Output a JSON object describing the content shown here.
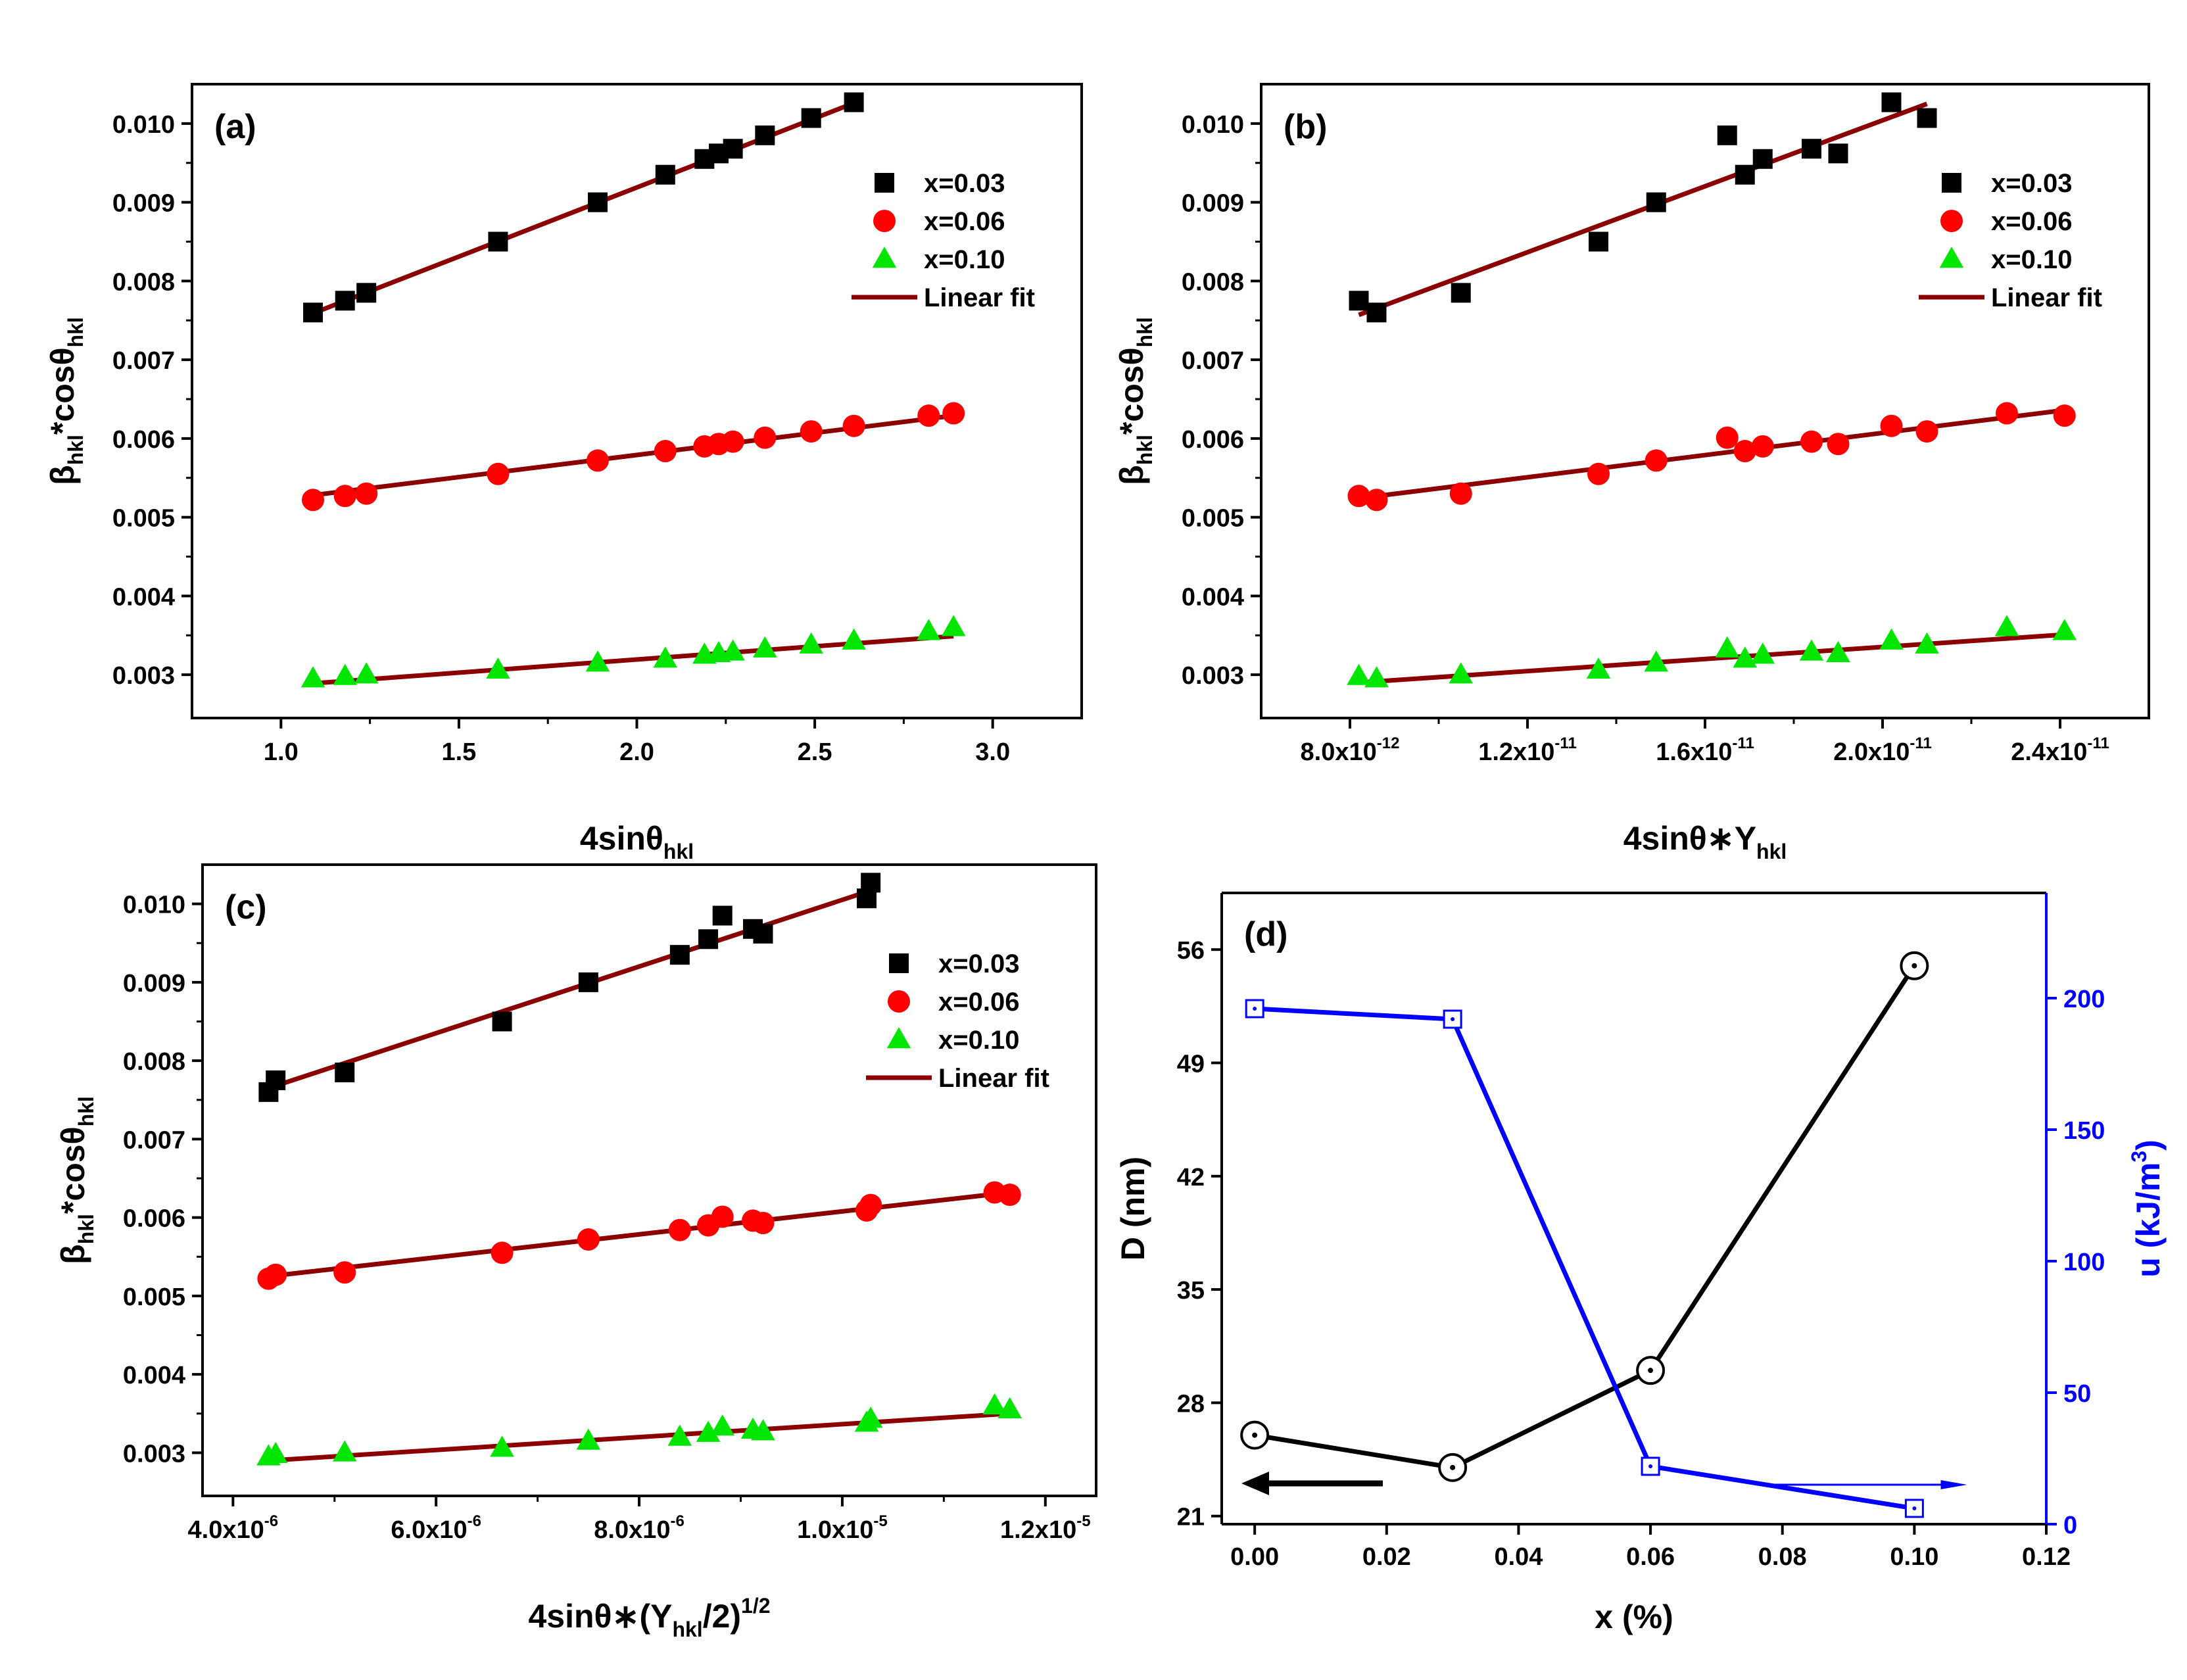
{
  "chart_data": [
    {
      "type": "scatter",
      "panel_label": "(a)",
      "ylabel": "βhkl*cosθhkl",
      "xlabel": "4sinθhkl",
      "xlim": [
        0.75,
        3.25
      ],
      "ylim": [
        0.00245,
        0.0105
      ],
      "xticks": [
        1.0,
        1.5,
        2.0,
        2.5,
        3.0
      ],
      "xtick_labels": [
        "1.0",
        "1.5",
        "2.0",
        "2.5",
        "3.0"
      ],
      "yticks": [
        0.003,
        0.004,
        0.005,
        0.006,
        0.007,
        0.008,
        0.009,
        0.01
      ],
      "ytick_labels": [
        "0.003",
        "0.004",
        "0.005",
        "0.006",
        "0.007",
        "0.008",
        "0.009",
        "0.010"
      ],
      "legend": {
        "placement": "upper-right",
        "entries": [
          "x=0.03",
          "x=0.06",
          "x=0.10",
          "Linear fit"
        ]
      },
      "series": [
        {
          "name": "x=0.03",
          "marker": "square",
          "color": "#000000",
          "x": [
            1.09,
            1.18,
            1.24,
            1.61,
            1.89,
            2.08,
            2.19,
            2.23,
            2.27,
            2.36,
            2.49,
            2.61
          ],
          "y": [
            0.0076,
            0.00775,
            0.00785,
            0.0085,
            0.009,
            0.00935,
            0.00955,
            0.00962,
            0.00968,
            0.00985,
            0.01007,
            0.01027
          ]
        },
        {
          "name": "x=0.06",
          "marker": "circle",
          "color": "#ff0000",
          "x": [
            1.09,
            1.18,
            1.24,
            1.61,
            1.89,
            2.08,
            2.19,
            2.23,
            2.27,
            2.36,
            2.49,
            2.61,
            2.82,
            2.89
          ],
          "y": [
            0.00522,
            0.00527,
            0.0053,
            0.00555,
            0.00572,
            0.00584,
            0.0059,
            0.00593,
            0.00596,
            0.00601,
            0.00609,
            0.00616,
            0.00629,
            0.00632
          ]
        },
        {
          "name": "x=0.10",
          "marker": "triangle",
          "color": "#00e600",
          "x": [
            1.09,
            1.18,
            1.24,
            1.61,
            1.89,
            2.08,
            2.19,
            2.23,
            2.27,
            2.36,
            2.49,
            2.61,
            2.82,
            2.89
          ],
          "y": [
            0.00295,
            0.00298,
            0.003,
            0.00306,
            0.00315,
            0.0032,
            0.00325,
            0.00327,
            0.00329,
            0.00333,
            0.00338,
            0.00343,
            0.00355,
            0.0036
          ]
        },
        {
          "name": "Linear fit",
          "type": "line",
          "color": "#8b0000",
          "segments": [
            {
              "x": [
                1.09,
                2.61
              ],
              "y": [
                0.00759,
                0.01026
              ]
            },
            {
              "x": [
                1.09,
                2.89
              ],
              "y": [
                0.00528,
                0.00629
              ]
            },
            {
              "x": [
                1.09,
                2.89
              ],
              "y": [
                0.00289,
                0.00349
              ]
            }
          ]
        }
      ]
    },
    {
      "type": "scatter",
      "panel_label": "(b)",
      "ylabel": "βhkl*cosθhkl",
      "xlabel": "4sinθ*Yhkl",
      "xlim": [
        6e-12,
        2.6e-11
      ],
      "ylim": [
        0.00245,
        0.0105
      ],
      "xticks": [
        8e-12,
        1.2e-11,
        1.6e-11,
        2e-11,
        2.4e-11
      ],
      "xtick_labels": [
        {
          "mantissa": "8.0x10",
          "exp": "-12"
        },
        {
          "mantissa": "1.2x10",
          "exp": "-11"
        },
        {
          "mantissa": "1.6x10",
          "exp": "-11"
        },
        {
          "mantissa": "2.0x10",
          "exp": "-11"
        },
        {
          "mantissa": "2.4x10",
          "exp": "-11"
        }
      ],
      "yticks": [
        0.003,
        0.004,
        0.005,
        0.006,
        0.007,
        0.008,
        0.009,
        0.01
      ],
      "ytick_labels": [
        "0.003",
        "0.004",
        "0.005",
        "0.006",
        "0.007",
        "0.008",
        "0.009",
        "0.010"
      ],
      "legend": {
        "placement": "upper-right",
        "entries": [
          "x=0.03",
          "x=0.06",
          "x=0.10",
          "Linear fit"
        ]
      },
      "series": [
        {
          "name": "x=0.03",
          "marker": "square",
          "color": "#000000",
          "x": [
            8.2e-12,
            8.6e-12,
            1.05e-11,
            1.36e-11,
            1.49e-11,
            1.65e-11,
            1.69e-11,
            1.73e-11,
            1.84e-11,
            1.9e-11,
            2.02e-11,
            2.1e-11
          ],
          "y": [
            0.00775,
            0.0076,
            0.00785,
            0.0085,
            0.009,
            0.00985,
            0.00935,
            0.00955,
            0.00968,
            0.00962,
            0.01027,
            0.01007
          ]
        },
        {
          "name": "x=0.06",
          "marker": "circle",
          "color": "#ff0000",
          "x": [
            8.2e-12,
            8.6e-12,
            1.05e-11,
            1.36e-11,
            1.49e-11,
            1.65e-11,
            1.69e-11,
            1.73e-11,
            1.84e-11,
            1.9e-11,
            2.02e-11,
            2.1e-11,
            2.28e-11,
            2.41e-11
          ],
          "y": [
            0.00527,
            0.00522,
            0.0053,
            0.00555,
            0.00572,
            0.00601,
            0.00584,
            0.0059,
            0.00596,
            0.00593,
            0.00616,
            0.00609,
            0.00632,
            0.00629
          ]
        },
        {
          "name": "x=0.10",
          "marker": "triangle",
          "color": "#00e600",
          "x": [
            8.2e-12,
            8.6e-12,
            1.05e-11,
            1.36e-11,
            1.49e-11,
            1.65e-11,
            1.69e-11,
            1.73e-11,
            1.84e-11,
            1.9e-11,
            2.02e-11,
            2.1e-11,
            2.28e-11,
            2.41e-11
          ],
          "y": [
            0.00298,
            0.00295,
            0.003,
            0.00306,
            0.00315,
            0.00333,
            0.0032,
            0.00325,
            0.00329,
            0.00327,
            0.00343,
            0.00338,
            0.0036,
            0.00355
          ]
        },
        {
          "name": "Linear fit",
          "type": "line",
          "color": "#8b0000",
          "segments": [
            {
              "x": [
                8.2e-12,
                2.1e-11
              ],
              "y": [
                0.00757,
                0.01025
              ]
            },
            {
              "x": [
                8.2e-12,
                2.41e-11
              ],
              "y": [
                0.00524,
                0.00636
              ]
            },
            {
              "x": [
                8.2e-12,
                2.41e-11
              ],
              "y": [
                0.0029,
                0.00351
              ]
            }
          ]
        }
      ]
    },
    {
      "type": "scatter",
      "panel_label": "(c)",
      "ylabel": "βhkl*cosθhkl",
      "xlabel": "4sinθ*(Yhkl/2)1/2",
      "xlim": [
        3.7e-06,
        1.25e-05
      ],
      "ylim": [
        0.00245,
        0.0105
      ],
      "xticks": [
        4e-06,
        6e-06,
        8e-06,
        1e-05,
        1.2e-05
      ],
      "xtick_labels": [
        {
          "mantissa": "4.0x10",
          "exp": "-6"
        },
        {
          "mantissa": "6.0x10",
          "exp": "-6"
        },
        {
          "mantissa": "8.0x10",
          "exp": "-6"
        },
        {
          "mantissa": "1.0x10",
          "exp": "-5"
        },
        {
          "mantissa": "1.2x10",
          "exp": "-5"
        }
      ],
      "yticks": [
        0.003,
        0.004,
        0.005,
        0.006,
        0.007,
        0.008,
        0.009,
        0.01
      ],
      "ytick_labels": [
        "0.003",
        "0.004",
        "0.005",
        "0.006",
        "0.007",
        "0.008",
        "0.009",
        "0.010"
      ],
      "legend": {
        "placement": "upper-right",
        "entries": [
          "x=0.03",
          "x=0.06",
          "x=0.10",
          "Linear fit"
        ]
      },
      "series": [
        {
          "name": "x=0.03",
          "marker": "square",
          "color": "#000000",
          "x": [
            4.35e-06,
            4.42e-06,
            5.1e-06,
            6.65e-06,
            7.5e-06,
            8.4e-06,
            8.68e-06,
            8.82e-06,
            9.12e-06,
            9.22e-06,
            1.024e-05,
            1.028e-05
          ],
          "y": [
            0.0076,
            0.00775,
            0.00785,
            0.0085,
            0.009,
            0.00935,
            0.00955,
            0.00985,
            0.00968,
            0.00962,
            0.01007,
            0.01027
          ]
        },
        {
          "name": "x=0.06",
          "marker": "circle",
          "color": "#ff0000",
          "x": [
            4.35e-06,
            4.42e-06,
            5.1e-06,
            6.65e-06,
            7.5e-06,
            8.4e-06,
            8.68e-06,
            8.82e-06,
            9.12e-06,
            9.22e-06,
            1.024e-05,
            1.028e-05,
            1.15e-05,
            1.165e-05
          ],
          "y": [
            0.00522,
            0.00527,
            0.0053,
            0.00555,
            0.00572,
            0.00584,
            0.0059,
            0.00601,
            0.00596,
            0.00593,
            0.00609,
            0.00616,
            0.00632,
            0.00629
          ]
        },
        {
          "name": "x=0.10",
          "marker": "triangle",
          "color": "#00e600",
          "x": [
            4.35e-06,
            4.42e-06,
            5.1e-06,
            6.65e-06,
            7.5e-06,
            8.4e-06,
            8.68e-06,
            8.82e-06,
            9.12e-06,
            9.22e-06,
            1.024e-05,
            1.028e-05,
            1.15e-05,
            1.165e-05
          ],
          "y": [
            0.00295,
            0.00298,
            0.003,
            0.00306,
            0.00315,
            0.0032,
            0.00325,
            0.00333,
            0.00329,
            0.00327,
            0.00338,
            0.00343,
            0.0036,
            0.00355
          ]
        },
        {
          "name": "Linear fit",
          "type": "line",
          "color": "#8b0000",
          "segments": [
            {
              "x": [
                4.35e-06,
                1.028e-05
              ],
              "y": [
                0.00765,
                0.01017
              ]
            },
            {
              "x": [
                4.35e-06,
                1.165e-05
              ],
              "y": [
                0.00525,
                0.00632
              ]
            },
            {
              "x": [
                4.35e-06,
                1.165e-05
              ],
              "y": [
                0.0029,
                0.0035
              ]
            }
          ]
        }
      ]
    },
    {
      "type": "line",
      "panel_label": "(d)",
      "xlabel": "x (%)",
      "ylabel": "D (nm)",
      "ylabel_right": "u (kJ/m3)",
      "xlim": [
        -0.005,
        0.12
      ],
      "ylim": [
        20.5,
        59.5
      ],
      "ylim_right": [
        0,
        240
      ],
      "xticks": [
        0.0,
        0.02,
        0.04,
        0.06,
        0.08,
        0.1,
        0.12
      ],
      "xtick_labels": [
        "0.00",
        "0.02",
        "0.04",
        "0.06",
        "0.08",
        "0.10",
        "0.12"
      ],
      "yticks": [
        21,
        28,
        35,
        42,
        49,
        56
      ],
      "ytick_labels": [
        "21",
        "28",
        "35",
        "42",
        "49",
        "56"
      ],
      "yticks_right": [
        0,
        50,
        100,
        150,
        200
      ],
      "ytick_labels_right": [
        "0",
        "50",
        "100",
        "150",
        "200"
      ],
      "series": [
        {
          "name": "D",
          "axis": "left",
          "color": "#000000",
          "marker": "circle-dot",
          "x": [
            0.0,
            0.03,
            0.06,
            0.1
          ],
          "y": [
            26.0,
            24.0,
            30.0,
            55.0
          ]
        },
        {
          "name": "u",
          "axis": "right",
          "color": "#0000ff",
          "marker": "square-dot",
          "x": [
            0.0,
            0.03,
            0.06,
            0.1
          ],
          "y": [
            196,
            192,
            22,
            6
          ]
        }
      ],
      "annotations": [
        "left arrow pointing to D axis",
        "right arrow pointing to u axis"
      ]
    }
  ]
}
